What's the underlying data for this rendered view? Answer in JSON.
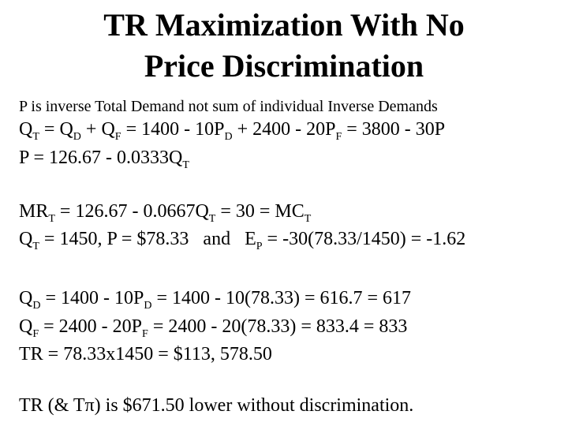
{
  "title": {
    "line1": "TR Maximization With No",
    "line2": "Price Discrimination"
  },
  "note": "P is inverse Total Demand not sum of individual Inverse Demands",
  "eq1": {
    "a": "Q",
    "a_sub": "T",
    "b": " = Q",
    "b_sub": "D",
    "c": " + Q",
    "c_sub": "F",
    "d": " = 1400 - 10P",
    "d_sub": "D",
    "e": " + 2400 - 20P",
    "e_sub": "F",
    "f": " = 3800 - 30P"
  },
  "eq2": {
    "a": "P = 126.67 - 0.0333Q",
    "a_sub": "T"
  },
  "eq3": {
    "a": "MR",
    "a_sub": "T",
    "b": " = 126.67 - 0.0667Q",
    "b_sub": "T",
    "c": " = 30 = MC",
    "c_sub": "T"
  },
  "eq4": {
    "a": "Q",
    "a_sub": "T",
    "b": " = 1450, P = $78.33   and   E",
    "b_sub": "P",
    "c": " = -30(78.33/1450) = -1.62"
  },
  "eq5": {
    "a": "Q",
    "a_sub": "D",
    "b": " = 1400 - 10P",
    "b_sub": "D",
    "c": " = 1400 - 10(78.33) = 616.7 = 617"
  },
  "eq6": {
    "a": "Q",
    "a_sub": "F",
    "b": " = 2400 - 20P",
    "b_sub": "F",
    "c": " = 2400 - 20(78.33) = 833.4 = 833"
  },
  "eq7": "TR = 78.33x1450 = $113, 578.50",
  "conclusion": "TR (& Tπ) is $671.50 lower without discrimination."
}
